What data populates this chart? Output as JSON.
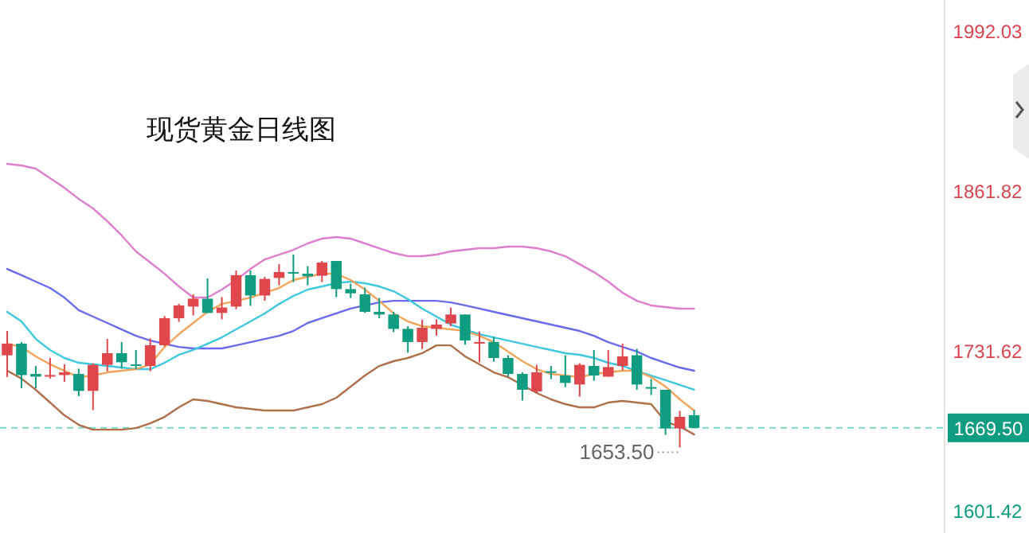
{
  "chart_data": {
    "type": "candlestick",
    "title": "现货黄金日线图",
    "categories": [
      null,
      null,
      null,
      null,
      null,
      null,
      null,
      null,
      null,
      null,
      null,
      null,
      null,
      null,
      null,
      null,
      null,
      null,
      null,
      null,
      null,
      null,
      null,
      null,
      null,
      null,
      null,
      null,
      null,
      null,
      null,
      null,
      null,
      null,
      null,
      null,
      null,
      null,
      null,
      null,
      null,
      null,
      null,
      null,
      null,
      null,
      null,
      null,
      null,
      null,
      null,
      null,
      null,
      null,
      null,
      null,
      null,
      null,
      null,
      null,
      null,
      null,
      null,
      null,
      null,
      null
    ],
    "ohlc": [
      [
        1728.6,
        1748.4,
        1710.9,
        1738.1
      ],
      [
        1738.1,
        1739.4,
        1701.8,
        1712.5
      ],
      [
        1713.4,
        1719.9,
        1701.8,
        1711.2
      ],
      [
        1711.2,
        1726.4,
        1709.6,
        1712.5
      ],
      [
        1712.5,
        1721.2,
        1707.0,
        1714.7
      ],
      [
        1713.4,
        1717.7,
        1695.3,
        1699.6
      ],
      [
        1699.6,
        1722.1,
        1684.0,
        1720.8
      ],
      [
        1720.8,
        1741.9,
        1715.6,
        1730.3
      ],
      [
        1730.3,
        1739.4,
        1717.7,
        1722.9
      ],
      [
        1721.2,
        1732.9,
        1717.3,
        1719.9
      ],
      [
        1719.9,
        1742.3,
        1715.6,
        1736.8
      ],
      [
        1736.8,
        1760.5,
        1735.9,
        1758.8
      ],
      [
        1758.8,
        1770.5,
        1755.8,
        1769.2
      ],
      [
        1768.3,
        1778.2,
        1761.0,
        1774.7
      ],
      [
        1774.7,
        1791.2,
        1763.1,
        1763.1
      ],
      [
        1763.1,
        1776.0,
        1757.9,
        1767.5
      ],
      [
        1768.3,
        1797.7,
        1766.2,
        1793.8
      ],
      [
        1793.8,
        1797.7,
        1768.8,
        1777.3
      ],
      [
        1777.3,
        1792.5,
        1773.0,
        1790.8
      ],
      [
        1791.6,
        1802.8,
        1785.6,
        1796.4
      ],
      [
        1796.4,
        1810.6,
        1788.2,
        1795.5
      ],
      [
        1795.1,
        1801.2,
        1785.6,
        1792.9
      ],
      [
        1793.4,
        1805.4,
        1788.2,
        1804.1
      ],
      [
        1805.4,
        1805.4,
        1776.0,
        1782.5
      ],
      [
        1782.5,
        1786.9,
        1775.3,
        1779.1
      ],
      [
        1778.2,
        1783.8,
        1763.1,
        1764.0
      ],
      [
        1764.0,
        1775.3,
        1758.8,
        1761.8
      ],
      [
        1761.8,
        1764.0,
        1747.5,
        1750.1
      ],
      [
        1750.1,
        1752.3,
        1730.7,
        1739.4
      ],
      [
        1739.4,
        1757.5,
        1733.8,
        1751.0
      ],
      [
        1750.1,
        1757.9,
        1744.5,
        1753.6
      ],
      [
        1754.5,
        1767.5,
        1752.3,
        1761.8
      ],
      [
        1761.8,
        1761.8,
        1737.2,
        1740.7
      ],
      [
        1738.1,
        1748.0,
        1722.9,
        1739.4
      ],
      [
        1739.4,
        1743.6,
        1723.4,
        1726.4
      ],
      [
        1726.4,
        1728.6,
        1711.2,
        1713.4
      ],
      [
        1713.4,
        1714.7,
        1691.8,
        1700.5
      ],
      [
        1699.2,
        1720.8,
        1697.5,
        1714.7
      ],
      [
        1715.6,
        1719.9,
        1709.2,
        1714.3
      ],
      [
        1712.1,
        1728.6,
        1702.7,
        1706.1
      ],
      [
        1704.8,
        1722.1,
        1694.9,
        1720.8
      ],
      [
        1719.9,
        1732.9,
        1707.9,
        1712.1
      ],
      [
        1711.2,
        1732.9,
        1711.2,
        1719.0
      ],
      [
        1719.9,
        1738.1,
        1716.4,
        1727.7
      ],
      [
        1728.6,
        1733.8,
        1700.5,
        1704.8
      ],
      [
        1702.7,
        1709.2,
        1696.2,
        1701.4
      ],
      [
        1700.5,
        1700.5,
        1663.8,
        1669.0
      ],
      [
        1669.0,
        1683.3,
        1653.5,
        1678.5
      ],
      [
        1679.8,
        1684.0,
        1669.5,
        1669.5
      ],
      null,
      null,
      null,
      null,
      null,
      null,
      null,
      null,
      null,
      null,
      null,
      null,
      null,
      null,
      null,
      null,
      null
    ],
    "colors": [
      "#e0474c",
      "#0f9d82",
      "#0f9d82",
      "#e0474c",
      "#e0474c",
      "#0f9d82",
      "#e0474c",
      "#e0474c",
      "#0f9d82",
      "#0f9d82",
      "#e0474c",
      "#e0474c",
      "#e0474c",
      "#e0474c",
      "#0f9d82",
      "#e0474c",
      "#e0474c",
      "#0f9d82",
      "#e0474c",
      "#e0474c",
      "#0f9d82",
      "#0f9d82",
      "#e0474c",
      "#0f9d82",
      "#0f9d82",
      "#0f9d82",
      "#0f9d82",
      "#0f9d82",
      "#0f9d82",
      "#e0474c",
      "#e0474c",
      "#e0474c",
      "#0f9d82",
      "#e0474c",
      "#0f9d82",
      "#0f9d82",
      "#0f9d82",
      "#e0474c",
      "#0f9d82",
      "#0f9d82",
      "#e0474c",
      "#0f9d82",
      "#e0474c",
      "#e0474c",
      "#0f9d82",
      "#0f9d82",
      "#0f9d82",
      "#e0474c",
      "#0f9d82",
      null,
      null,
      null,
      null,
      null,
      null,
      null,
      null,
      null,
      null,
      null,
      null,
      null,
      null,
      null,
      null,
      null
    ],
    "series": [
      {
        "type": "line",
        "color": "#e07fd0",
        "values": [
          1884.5,
          1883.2,
          1880.6,
          1872.8,
          1865.0,
          1856.0,
          1848.2,
          1837.8,
          1826.2,
          1813.2,
          1804.1,
          1795.0,
          1784.7,
          1775.6,
          1775.6,
          1782.1,
          1789.9,
          1798.9,
          1806.7,
          1810.6,
          1814.5,
          1819.7,
          1823.6,
          1824.9,
          1823.6,
          1819.7,
          1815.8,
          1811.9,
          1809.3,
          1809.3,
          1810.6,
          1813.2,
          1814.5,
          1815.8,
          1815.8,
          1817.1,
          1817.1,
          1815.8,
          1813.2,
          1809.3,
          1802.8,
          1796.3,
          1788.6,
          1779.5,
          1773.0,
          1769.2,
          1767.9,
          1766.6,
          1766.6,
          null,
          null,
          null,
          null,
          null,
          null,
          null,
          null,
          null,
          null,
          null,
          null,
          null,
          null,
          null,
          null,
          null
        ]
      },
      {
        "type": "line",
        "color": "#6a6cf0",
        "values": [
          1798.9,
          1793.8,
          1788.6,
          1783.4,
          1775.6,
          1765.3,
          1760.1,
          1754.9,
          1749.7,
          1744.5,
          1740.6,
          1738.0,
          1735.4,
          1734.2,
          1734.2,
          1734.2,
          1736.7,
          1739.3,
          1741.9,
          1744.5,
          1748.4,
          1754.9,
          1758.8,
          1762.7,
          1766.6,
          1769.2,
          1771.7,
          1773.0,
          1773.0,
          1773.0,
          1773.0,
          1771.7,
          1769.2,
          1766.6,
          1764.0,
          1761.4,
          1758.8,
          1756.2,
          1753.6,
          1751.0,
          1748.4,
          1744.5,
          1739.3,
          1735.4,
          1731.6,
          1726.4,
          1722.5,
          1718.6,
          1716.0,
          null,
          null,
          null,
          null,
          null,
          null,
          null,
          null,
          null,
          null,
          null,
          null,
          null,
          null,
          null,
          null,
          null
        ]
      },
      {
        "type": "line",
        "color": "#3fc8e0",
        "values": [
          1764.0,
          1756.2,
          1741.9,
          1732.9,
          1726.4,
          1722.5,
          1721.2,
          1719.9,
          1718.6,
          1717.3,
          1717.3,
          1722.5,
          1729.0,
          1732.9,
          1738.0,
          1743.2,
          1749.7,
          1756.2,
          1762.7,
          1770.4,
          1776.9,
          1782.1,
          1784.7,
          1787.3,
          1788.6,
          1787.3,
          1784.7,
          1780.8,
          1774.3,
          1766.6,
          1760.1,
          1753.6,
          1749.7,
          1745.8,
          1743.2,
          1740.6,
          1738.0,
          1735.4,
          1732.9,
          1730.3,
          1729.0,
          1726.4,
          1722.5,
          1719.9,
          1716.0,
          1712.1,
          1708.3,
          1704.4,
          1700.5,
          null,
          null,
          null,
          null,
          null,
          null,
          null,
          null,
          null,
          null,
          null,
          null,
          null,
          null,
          null,
          null,
          null
        ]
      },
      {
        "type": "line",
        "color": "#f5a55c",
        "values": [
          1738.0,
          1735.4,
          1727.7,
          1721.2,
          1716.0,
          1710.8,
          1712.1,
          1714.7,
          1716.0,
          1717.3,
          1721.2,
          1735.4,
          1745.8,
          1754.9,
          1764.0,
          1770.4,
          1773.0,
          1775.6,
          1779.5,
          1783.4,
          1789.9,
          1792.5,
          1795.0,
          1795.0,
          1789.9,
          1782.1,
          1773.0,
          1762.7,
          1756.2,
          1752.3,
          1751.0,
          1749.7,
          1748.4,
          1744.5,
          1739.3,
          1731.6,
          1723.8,
          1717.3,
          1713.4,
          1712.1,
          1710.8,
          1713.4,
          1714.7,
          1716.0,
          1716.0,
          1710.8,
          1703.1,
          1692.7,
          1683.6,
          null,
          null,
          null,
          null,
          null,
          null,
          null,
          null,
          null,
          null,
          null,
          null,
          null,
          null,
          null,
          null,
          null
        ]
      },
      {
        "type": "line",
        "color": "#b0704a",
        "values": [
          1716.0,
          1709.6,
          1700.5,
          1690.1,
          1679.7,
          1671.9,
          1668.0,
          1668.0,
          1668.0,
          1669.3,
          1673.2,
          1678.4,
          1686.2,
          1692.7,
          1691.4,
          1688.8,
          1686.2,
          1684.9,
          1683.6,
          1683.6,
          1683.6,
          1686.2,
          1688.8,
          1694.0,
          1703.1,
          1712.1,
          1719.9,
          1723.8,
          1726.4,
          1730.3,
          1736.7,
          1736.7,
          1727.7,
          1721.2,
          1714.7,
          1710.8,
          1704.4,
          1697.9,
          1692.7,
          1688.8,
          1686.2,
          1686.2,
          1690.1,
          1691.4,
          1690.1,
          1688.8,
          1674.5,
          1670.6,
          1664.1,
          null,
          null,
          null,
          null,
          null,
          null,
          null,
          null,
          null,
          null,
          null,
          null,
          null,
          null,
          null,
          null,
          null
        ]
      }
    ],
    "ylim": [
      1583.86,
      2017.95
    ],
    "yticks": [
      1992.03,
      1861.82,
      1731.62,
      1601.42
    ],
    "tick_labels": "y",
    "ref_lines": [
      {
        "axis": "y",
        "value": 1669.5,
        "label": "1669.50",
        "color": "#7fd6c8",
        "line_style": "dashed"
      }
    ],
    "annotations": [
      "1653.50"
    ]
  }
}
